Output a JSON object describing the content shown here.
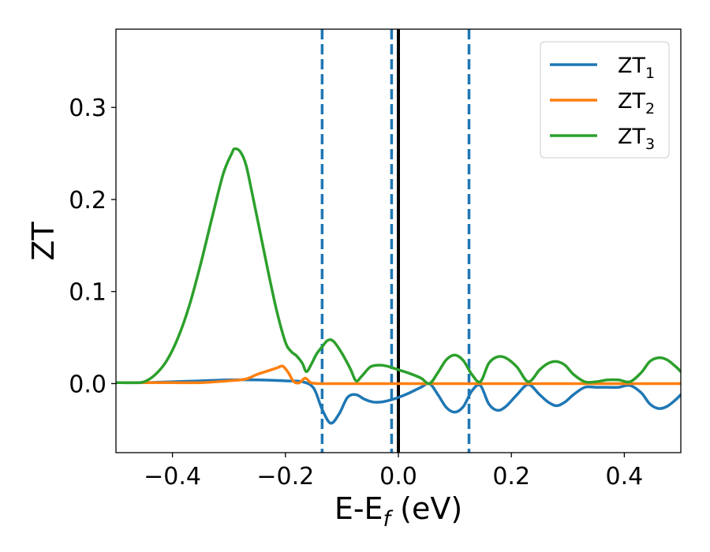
{
  "chart_data": {
    "type": "line",
    "xlabel": {
      "main": "E-E",
      "sub": "f",
      "tail": " (eV)"
    },
    "ylabel": "ZT",
    "xlim": [
      -0.5,
      0.5
    ],
    "ylim": [
      -0.075,
      0.385
    ],
    "xticks": [
      -0.4,
      -0.2,
      0.0,
      0.2,
      0.4
    ],
    "xtick_labels": [
      "−0.4",
      "−0.2",
      "0.0",
      "0.2",
      "0.4"
    ],
    "yticks": [
      0.0,
      0.1,
      0.2,
      0.3
    ],
    "ytick_labels": [
      "0.0",
      "0.1",
      "0.2",
      "0.3"
    ],
    "grid": false,
    "legend_position": "top-right",
    "vertical_lines": [
      {
        "x": -0.135,
        "style": "dashed",
        "color": "#1f77b4"
      },
      {
        "x": -0.012,
        "style": "dashed",
        "color": "#1f77b4"
      },
      {
        "x": 0.0,
        "style": "solid",
        "color": "#000000"
      },
      {
        "x": 0.125,
        "style": "dashed",
        "color": "#1f77b4"
      }
    ],
    "series": [
      {
        "name": "ZT",
        "sub": "1",
        "color": "#1f77b4",
        "points": [
          [
            -0.5,
            0.001
          ],
          [
            -0.45,
            0.001
          ],
          [
            -0.4,
            0.002
          ],
          [
            -0.35,
            0.003
          ],
          [
            -0.3,
            0.004
          ],
          [
            -0.25,
            0.004
          ],
          [
            -0.2,
            0.003
          ],
          [
            -0.17,
            0.002
          ],
          [
            -0.15,
            -0.005
          ],
          [
            -0.135,
            -0.028
          ],
          [
            -0.12,
            -0.043
          ],
          [
            -0.105,
            -0.033
          ],
          [
            -0.09,
            -0.015
          ],
          [
            -0.075,
            -0.012
          ],
          [
            -0.06,
            -0.017
          ],
          [
            -0.045,
            -0.02
          ],
          [
            -0.03,
            -0.02
          ],
          [
            -0.015,
            -0.018
          ],
          [
            0.0,
            -0.015
          ],
          [
            0.02,
            -0.01
          ],
          [
            0.04,
            -0.004
          ],
          [
            0.055,
            0.0
          ],
          [
            0.07,
            -0.012
          ],
          [
            0.085,
            -0.026
          ],
          [
            0.1,
            -0.031
          ],
          [
            0.115,
            -0.025
          ],
          [
            0.13,
            -0.008
          ],
          [
            0.145,
            -0.002
          ],
          [
            0.16,
            -0.022
          ],
          [
            0.175,
            -0.029
          ],
          [
            0.19,
            -0.025
          ],
          [
            0.21,
            -0.012
          ],
          [
            0.23,
            -0.001
          ],
          [
            0.25,
            -0.012
          ],
          [
            0.265,
            -0.02
          ],
          [
            0.28,
            -0.024
          ],
          [
            0.295,
            -0.02
          ],
          [
            0.31,
            -0.012
          ],
          [
            0.33,
            -0.004
          ],
          [
            0.35,
            -0.004
          ],
          [
            0.37,
            -0.004
          ],
          [
            0.39,
            -0.004
          ],
          [
            0.41,
            -0.002
          ],
          [
            0.43,
            -0.01
          ],
          [
            0.445,
            -0.022
          ],
          [
            0.46,
            -0.027
          ],
          [
            0.475,
            -0.025
          ],
          [
            0.49,
            -0.018
          ],
          [
            0.5,
            -0.012
          ]
        ]
      },
      {
        "name": "ZT",
        "sub": "2",
        "color": "#ff7f0e",
        "points": [
          [
            -0.5,
            0.001
          ],
          [
            -0.45,
            0.001
          ],
          [
            -0.4,
            0.001
          ],
          [
            -0.35,
            0.001
          ],
          [
            -0.3,
            0.003
          ],
          [
            -0.27,
            0.005
          ],
          [
            -0.25,
            0.01
          ],
          [
            -0.23,
            0.014
          ],
          [
            -0.215,
            0.017
          ],
          [
            -0.205,
            0.019
          ],
          [
            -0.195,
            0.012
          ],
          [
            -0.185,
            0.002
          ],
          [
            -0.175,
            0.001
          ],
          [
            -0.165,
            0.006
          ],
          [
            -0.155,
            0.001
          ],
          [
            -0.14,
            0.0
          ],
          [
            -0.1,
            0.0
          ],
          [
            0.0,
            0.0
          ],
          [
            0.1,
            0.0
          ],
          [
            0.2,
            0.0
          ],
          [
            0.3,
            0.0
          ],
          [
            0.4,
            0.0
          ],
          [
            0.5,
            0.0
          ]
        ]
      },
      {
        "name": "ZT",
        "sub": "3",
        "color": "#2ca02c",
        "points": [
          [
            -0.5,
            0.001
          ],
          [
            -0.47,
            0.001
          ],
          [
            -0.45,
            0.002
          ],
          [
            -0.43,
            0.01
          ],
          [
            -0.41,
            0.025
          ],
          [
            -0.39,
            0.05
          ],
          [
            -0.37,
            0.085
          ],
          [
            -0.35,
            0.13
          ],
          [
            -0.33,
            0.18
          ],
          [
            -0.31,
            0.228
          ],
          [
            -0.295,
            0.25
          ],
          [
            -0.29,
            0.255
          ],
          [
            -0.28,
            0.252
          ],
          [
            -0.27,
            0.238
          ],
          [
            -0.26,
            0.21
          ],
          [
            -0.245,
            0.165
          ],
          [
            -0.23,
            0.12
          ],
          [
            -0.215,
            0.078
          ],
          [
            -0.2,
            0.045
          ],
          [
            -0.19,
            0.035
          ],
          [
            -0.18,
            0.03
          ],
          [
            -0.17,
            0.022
          ],
          [
            -0.163,
            0.013
          ],
          [
            -0.155,
            0.02
          ],
          [
            -0.145,
            0.032
          ],
          [
            -0.135,
            0.04
          ],
          [
            -0.125,
            0.047
          ],
          [
            -0.115,
            0.046
          ],
          [
            -0.1,
            0.033
          ],
          [
            -0.085,
            0.016
          ],
          [
            -0.075,
            0.003
          ],
          [
            -0.065,
            0.008
          ],
          [
            -0.05,
            0.018
          ],
          [
            -0.035,
            0.02
          ],
          [
            -0.02,
            0.019
          ],
          [
            0.0,
            0.015
          ],
          [
            0.02,
            0.011
          ],
          [
            0.04,
            0.006
          ],
          [
            0.055,
            0.0
          ],
          [
            0.07,
            0.012
          ],
          [
            0.085,
            0.026
          ],
          [
            0.1,
            0.031
          ],
          [
            0.115,
            0.025
          ],
          [
            0.13,
            0.01
          ],
          [
            0.145,
            0.002
          ],
          [
            0.16,
            0.022
          ],
          [
            0.175,
            0.029
          ],
          [
            0.19,
            0.028
          ],
          [
            0.21,
            0.018
          ],
          [
            0.23,
            0.002
          ],
          [
            0.25,
            0.015
          ],
          [
            0.265,
            0.022
          ],
          [
            0.28,
            0.024
          ],
          [
            0.295,
            0.02
          ],
          [
            0.31,
            0.01
          ],
          [
            0.33,
            0.002
          ],
          [
            0.35,
            0.002
          ],
          [
            0.37,
            0.004
          ],
          [
            0.39,
            0.004
          ],
          [
            0.41,
            0.002
          ],
          [
            0.43,
            0.012
          ],
          [
            0.445,
            0.024
          ],
          [
            0.46,
            0.028
          ],
          [
            0.475,
            0.026
          ],
          [
            0.49,
            0.019
          ],
          [
            0.5,
            0.013
          ]
        ]
      }
    ]
  }
}
